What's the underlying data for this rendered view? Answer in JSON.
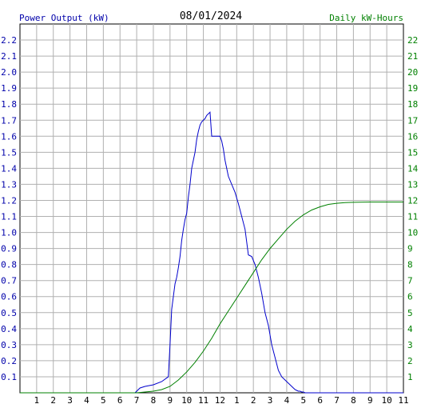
{
  "chart_data": {
    "type": "line",
    "title": "08/01/2024",
    "left_axis_label": "Power Output (kW)",
    "right_axis_label": "Daily kW-Hours",
    "left_axis": {
      "min": 0,
      "max": 2.3,
      "step": 0.1,
      "tick_labels": [
        "0.1",
        "0.2",
        "0.3",
        "0.4",
        "0.5",
        "0.6",
        "0.7",
        "0.8",
        "0.9",
        "1.0",
        "1.1",
        "1.2",
        "1.3",
        "1.4",
        "1.5",
        "1.6",
        "1.7",
        "1.8",
        "1.9",
        "2.0",
        "2.1",
        "2.2"
      ]
    },
    "right_axis": {
      "min": 0,
      "max": 23,
      "step": 1,
      "tick_labels": [
        "1",
        "2",
        "3",
        "4",
        "5",
        "6",
        "7",
        "8",
        "9",
        "10",
        "11",
        "12",
        "13",
        "14",
        "15",
        "16",
        "17",
        "18",
        "19",
        "20",
        "21",
        "22"
      ]
    },
    "x_axis": {
      "min": 0,
      "max": 23,
      "unit": "hour",
      "tick_labels": [
        "1",
        "2",
        "3",
        "4",
        "5",
        "6",
        "7",
        "8",
        "9",
        "10",
        "11",
        "12",
        "1",
        "2",
        "3",
        "4",
        "5",
        "6",
        "7",
        "8",
        "9",
        "10",
        "11"
      ]
    },
    "grid": true,
    "colors": {
      "power": "#0000cc",
      "energy": "#008000",
      "left_axis_text": "#0000aa",
      "right_axis_text": "#008000",
      "grid": "#b0b0b0",
      "title": "#000000"
    },
    "series": [
      {
        "axis": "left",
        "x": [
          0,
          6.9,
          7.0,
          7.2,
          7.5,
          8.0,
          8.5,
          8.9,
          9.0,
          9.1,
          9.2,
          9.3,
          9.4,
          9.5,
          9.6,
          9.7,
          9.8,
          9.9,
          10.0,
          10.1,
          10.2,
          10.3,
          10.4,
          10.5,
          10.6,
          10.7,
          10.8,
          10.9,
          11.0,
          11.1,
          11.2,
          11.3,
          11.4,
          11.5,
          11.6,
          11.7,
          11.8,
          11.9,
          12.0,
          12.1,
          12.2,
          12.3,
          12.5,
          12.7,
          12.9,
          13.1,
          13.3,
          13.5,
          13.7,
          13.9,
          14.1,
          14.3,
          14.5,
          14.7,
          14.9,
          15.1,
          15.3,
          15.5,
          15.7,
          15.9,
          16.0,
          16.1,
          16.2,
          16.3,
          16.4,
          16.5,
          16.6,
          16.7,
          16.8,
          16.9,
          17.0,
          17.1,
          17.2,
          17.3,
          17.4,
          17.5,
          17.6,
          17.7,
          17.8,
          17.9,
          18.0,
          18.1,
          18.2,
          18.3,
          18.4,
          18.5,
          18.6,
          18.7,
          18.8,
          18.9,
          19.0,
          19.2,
          19.4,
          19.6,
          19.8,
          20.0,
          20.2,
          20.4,
          20.6,
          20.8,
          21.0,
          21.3,
          21.6,
          21.9,
          22.2,
          22.5,
          22.8,
          23.0
        ],
        "values": [
          0,
          0,
          0.01,
          0.03,
          0.04,
          0.05,
          0.07,
          0.1,
          0.3,
          0.52,
          0.6,
          0.68,
          0.72,
          0.78,
          0.85,
          0.95,
          1.02,
          1.08,
          1.12,
          1.22,
          1.3,
          1.4,
          1.45,
          1.5,
          1.58,
          1.63,
          1.67,
          1.69,
          1.7,
          1.71,
          1.73,
          1.74,
          1.75,
          1.6,
          1.6,
          1.6,
          1.6,
          1.6,
          1.6,
          1.57,
          1.52,
          1.45,
          1.35,
          1.3,
          1.25,
          1.18,
          1.1,
          1.02,
          0.86,
          0.85,
          0.8,
          0.72,
          0.62,
          0.5,
          0.42,
          0.3,
          0.22,
          0.14,
          0.1,
          0.08,
          0.07,
          0.06,
          0.05,
          0.04,
          0.03,
          0.02,
          0.015,
          0.01,
          0.01,
          0.005,
          0.005,
          0,
          0,
          0,
          0,
          0,
          0,
          0,
          0,
          0,
          0,
          0,
          0,
          0,
          0,
          0,
          0,
          0,
          0,
          0,
          0,
          0,
          0,
          0,
          0,
          0,
          0,
          0,
          0,
          0,
          0,
          0,
          0,
          0,
          0,
          0,
          0,
          0
        ]
      },
      {
        "axis": "right",
        "x": [
          0,
          7.0,
          8.0,
          8.5,
          9.0,
          9.5,
          10.0,
          10.5,
          11.0,
          11.5,
          12.0,
          12.5,
          13.0,
          13.5,
          14.0,
          14.5,
          15.0,
          15.5,
          16.0,
          16.5,
          17.0,
          17.5,
          18.0,
          18.5,
          19.0,
          19.5,
          20.0,
          21.0,
          22.0,
          23.0
        ],
        "values": [
          0,
          0,
          0.1,
          0.2,
          0.4,
          0.8,
          1.3,
          1.9,
          2.6,
          3.4,
          4.3,
          5.1,
          5.9,
          6.7,
          7.5,
          8.3,
          9.0,
          9.6,
          10.2,
          10.7,
          11.1,
          11.4,
          11.6,
          11.75,
          11.82,
          11.86,
          11.88,
          11.9,
          11.9,
          11.9
        ]
      }
    ]
  }
}
